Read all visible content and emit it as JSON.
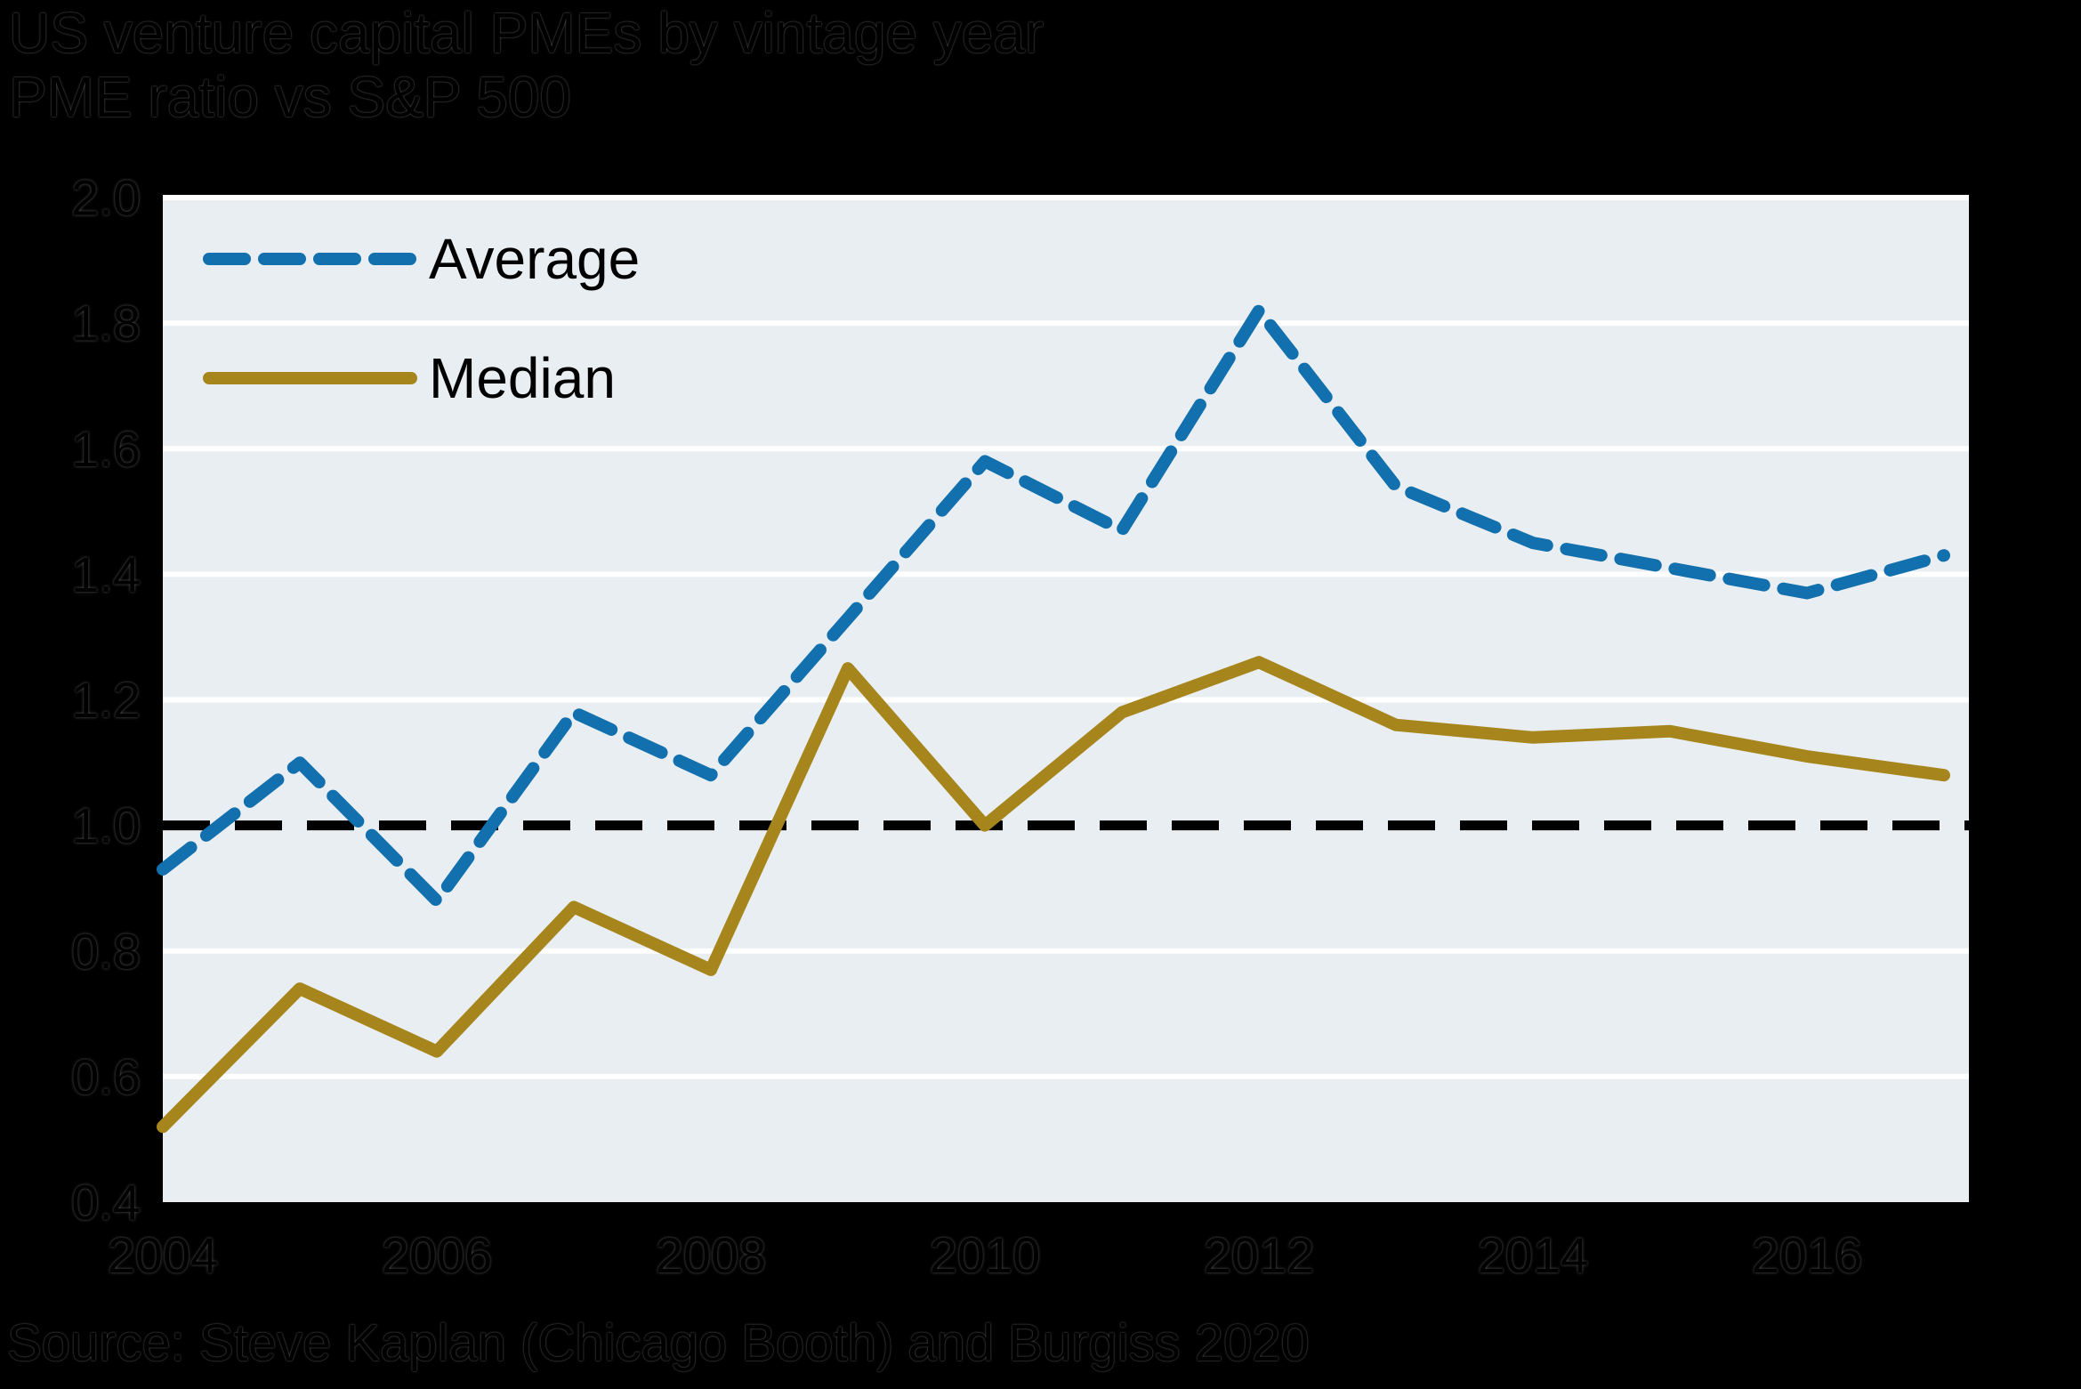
{
  "chart_data": {
    "type": "line",
    "title": "US venture capital PMEs by vintage year",
    "subtitle": "PME ratio vs S&P 500",
    "source": "Source: Steve Kaplan (Chicago Booth) and Burgiss 2020",
    "x": [
      2004,
      2005,
      2006,
      2007,
      2008,
      2009,
      2010,
      2011,
      2012,
      2013,
      2014,
      2015,
      2016,
      2017
    ],
    "xticks": [
      2004,
      2006,
      2008,
      2010,
      2012,
      2014,
      2016
    ],
    "ylim": [
      0.4,
      2.0
    ],
    "yticks": [
      2.0,
      1.8,
      1.6,
      1.4,
      1.2,
      1.0,
      0.8,
      0.6,
      0.4
    ],
    "gridline_values": [
      2.0,
      1.8,
      1.6,
      1.4,
      1.2,
      0.8,
      0.6
    ],
    "reference_line": 1.0,
    "legend_position": "top-left inside plot",
    "grid": "horizontal white lines on light panel",
    "series": [
      {
        "name": "Average",
        "style": "dashed",
        "color": "#1170ad",
        "values": [
          0.93,
          1.1,
          0.88,
          1.18,
          1.08,
          1.33,
          1.58,
          1.47,
          1.82,
          1.54,
          1.45,
          1.41,
          1.37,
          1.43
        ]
      },
      {
        "name": "Median",
        "style": "solid",
        "color": "#a6851c",
        "values": [
          0.52,
          0.74,
          0.64,
          0.87,
          0.77,
          1.25,
          1.0,
          1.18,
          1.26,
          1.16,
          1.14,
          1.15,
          1.11,
          1.08
        ]
      }
    ],
    "panel_color": "#e9eef2",
    "grid_color": "#ffffff",
    "reference_color": "#000000",
    "background_color": "#000000"
  }
}
